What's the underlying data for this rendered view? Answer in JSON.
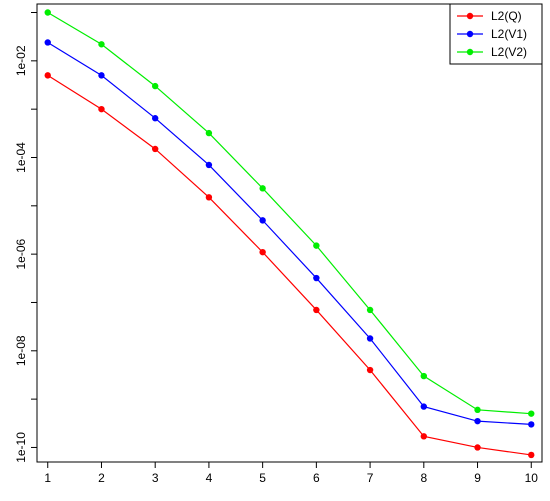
{
  "chart_data": {
    "type": "line",
    "title": "",
    "xlabel": "",
    "ylabel": "",
    "scale": {
      "x": "linear",
      "y": "log10"
    },
    "x": [
      1,
      2,
      3,
      4,
      5,
      6,
      7,
      8,
      9,
      10
    ],
    "xlim": [
      0.8,
      10.2
    ],
    "ylim": [
      5e-11,
      0.15
    ],
    "x_ticks": [
      "1",
      "2",
      "3",
      "4",
      "5",
      "6",
      "7",
      "8",
      "9",
      "10"
    ],
    "y_ticks": [
      {
        "value": 0.01,
        "label": "1e-02"
      },
      {
        "value": 0.0001,
        "label": "1e-04"
      },
      {
        "value": 1e-06,
        "label": "1e-06"
      },
      {
        "value": 1e-08,
        "label": "1e-08"
      },
      {
        "value": 1e-10,
        "label": "1e-10"
      }
    ],
    "y_minor_ticks": [
      0.1,
      0.001,
      1e-05,
      1e-07,
      1e-09
    ],
    "grid": false,
    "legend": {
      "position": "top-right"
    },
    "series": [
      {
        "name": "L2(Q)",
        "color": "#ff0000",
        "values": [
          0.005,
          0.001,
          0.00015,
          1.5e-05,
          1.1e-06,
          7e-08,
          4e-09,
          1.7e-10,
          1e-10,
          7e-11
        ]
      },
      {
        "name": "L2(V1)",
        "color": "#0000ff",
        "values": [
          0.024,
          0.005,
          0.00065,
          7e-05,
          5e-06,
          3.2e-07,
          1.8e-08,
          7e-10,
          3.5e-10,
          3e-10
        ]
      },
      {
        "name": "L2(V2)",
        "color": "#00ee00",
        "values": [
          0.1,
          0.022,
          0.003,
          0.00032,
          2.3e-05,
          1.5e-06,
          7e-08,
          3e-09,
          6e-10,
          5e-10
        ]
      }
    ]
  }
}
